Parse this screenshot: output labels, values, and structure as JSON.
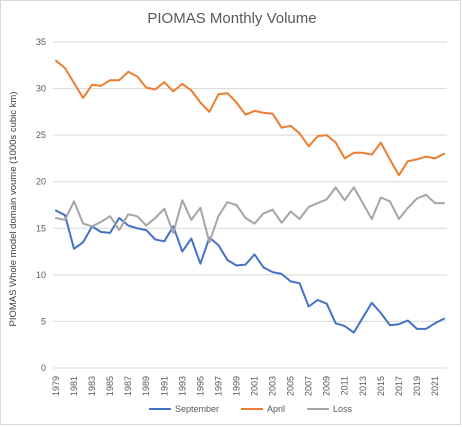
{
  "chart_data": {
    "type": "line",
    "title": "PIOMAS Monthly Volume",
    "xlabel": "",
    "ylabel": "PIOMAS Whole model domain voume (1000s cubic km)",
    "ylim": [
      0,
      35
    ],
    "yticks": [
      0,
      5,
      10,
      15,
      20,
      25,
      30,
      35
    ],
    "grid": "horizontal",
    "legend": "bottom",
    "x": [
      1979,
      1980,
      1981,
      1982,
      1983,
      1984,
      1985,
      1986,
      1987,
      1988,
      1989,
      1990,
      1991,
      1992,
      1993,
      1994,
      1995,
      1996,
      1997,
      1998,
      1999,
      2000,
      2001,
      2002,
      2003,
      2004,
      2005,
      2006,
      2007,
      2008,
      2009,
      2010,
      2011,
      2012,
      2013,
      2014,
      2015,
      2016,
      2017,
      2018,
      2019,
      2020,
      2021,
      2022
    ],
    "xtick_labels": [
      "1979",
      "1981",
      "1983",
      "1985",
      "1987",
      "1989",
      "1991",
      "1993",
      "1995",
      "1997",
      "1999",
      "2001",
      "2003",
      "2005",
      "2007",
      "2009",
      "2011",
      "2013",
      "2015",
      "2017",
      "2019",
      "2021"
    ],
    "series": [
      {
        "name": "September",
        "color": "#4472C4",
        "values": [
          16.9,
          16.4,
          12.8,
          13.5,
          15.2,
          14.6,
          14.5,
          16.1,
          15.3,
          15.0,
          14.8,
          13.8,
          13.6,
          15.2,
          12.5,
          13.9,
          11.2,
          14.0,
          13.2,
          11.6,
          11.0,
          11.1,
          12.2,
          10.8,
          10.3,
          10.1,
          9.3,
          9.1,
          6.6,
          7.3,
          6.9,
          4.8,
          4.5,
          3.8,
          5.4,
          7.0,
          5.9,
          4.6,
          4.7,
          5.1,
          4.2,
          4.2,
          4.8,
          5.3
        ]
      },
      {
        "name": "April",
        "color": "#ED7D31",
        "values": [
          33.0,
          32.2,
          30.6,
          29.0,
          30.4,
          30.3,
          30.9,
          30.9,
          31.8,
          31.3,
          30.1,
          29.9,
          30.7,
          29.7,
          30.5,
          29.8,
          28.5,
          27.5,
          29.4,
          29.5,
          28.5,
          27.2,
          27.6,
          27.4,
          27.3,
          25.8,
          26.0,
          25.2,
          23.8,
          24.9,
          25.0,
          24.2,
          22.5,
          23.1,
          23.1,
          22.9,
          24.2,
          22.4,
          20.7,
          22.2,
          22.4,
          22.7,
          22.5,
          23.0
        ]
      },
      {
        "name": "Loss",
        "color": "#A5A5A5",
        "values": [
          16.1,
          15.9,
          17.9,
          15.5,
          15.2,
          15.7,
          16.3,
          14.8,
          16.5,
          16.3,
          15.3,
          16.1,
          17.1,
          14.5,
          18.0,
          15.9,
          17.2,
          13.5,
          16.3,
          17.8,
          17.5,
          16.1,
          15.5,
          16.6,
          17.0,
          15.6,
          16.8,
          16.0,
          17.3,
          17.7,
          18.1,
          19.4,
          18.0,
          19.4,
          17.7,
          16.0,
          18.3,
          17.9,
          16.0,
          17.2,
          18.2,
          18.6,
          17.7,
          17.7
        ]
      }
    ]
  }
}
